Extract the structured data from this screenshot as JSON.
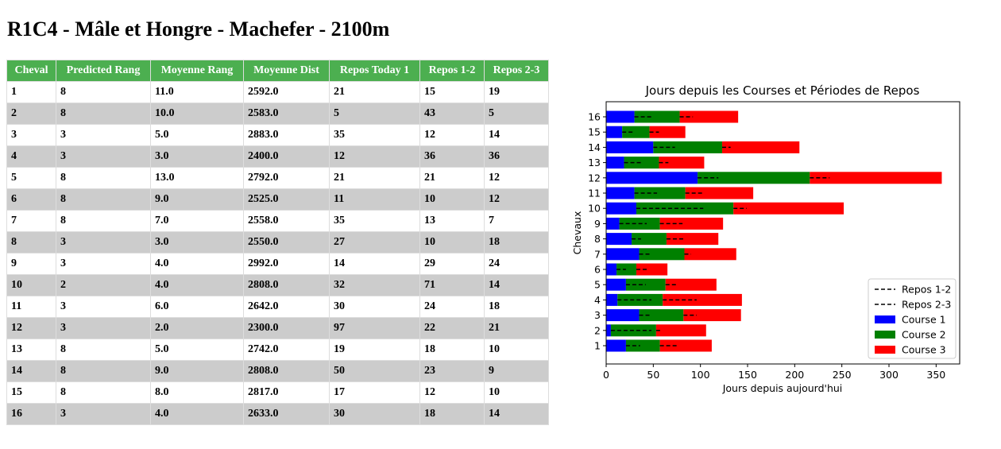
{
  "page": {
    "title": "R1C4 - Mâle et Hongre - Machefer - 2100m"
  },
  "table": {
    "headers": [
      "Cheval",
      "Predicted Rang",
      "Moyenne Rang",
      "Moyenne Dist",
      "Repos Today 1",
      "Repos 1-2",
      "Repos 2-3"
    ],
    "rows": [
      [
        "1",
        "8",
        "11.0",
        "2592.0",
        "21",
        "15",
        "19"
      ],
      [
        "2",
        "8",
        "10.0",
        "2583.0",
        "5",
        "43",
        "5"
      ],
      [
        "3",
        "3",
        "5.0",
        "2883.0",
        "35",
        "12",
        "14"
      ],
      [
        "4",
        "3",
        "3.0",
        "2400.0",
        "12",
        "36",
        "36"
      ],
      [
        "5",
        "8",
        "13.0",
        "2792.0",
        "21",
        "21",
        "12"
      ],
      [
        "6",
        "8",
        "9.0",
        "2525.0",
        "11",
        "10",
        "12"
      ],
      [
        "7",
        "8",
        "7.0",
        "2558.0",
        "35",
        "13",
        "7"
      ],
      [
        "8",
        "3",
        "3.0",
        "2550.0",
        "27",
        "10",
        "18"
      ],
      [
        "9",
        "3",
        "4.0",
        "2992.0",
        "14",
        "29",
        "24"
      ],
      [
        "10",
        "2",
        "4.0",
        "2808.0",
        "32",
        "71",
        "14"
      ],
      [
        "11",
        "3",
        "6.0",
        "2642.0",
        "30",
        "24",
        "18"
      ],
      [
        "12",
        "3",
        "2.0",
        "2300.0",
        "97",
        "22",
        "21"
      ],
      [
        "13",
        "8",
        "5.0",
        "2742.0",
        "19",
        "18",
        "10"
      ],
      [
        "14",
        "8",
        "9.0",
        "2808.0",
        "50",
        "23",
        "9"
      ],
      [
        "15",
        "8",
        "8.0",
        "2817.0",
        "17",
        "12",
        "10"
      ],
      [
        "16",
        "3",
        "4.0",
        "2633.0",
        "30",
        "18",
        "14"
      ]
    ]
  },
  "chart_data": {
    "type": "bar",
    "orientation": "horizontal",
    "stacked": true,
    "title": "Jours depuis les Courses et Périodes de Repos",
    "xlabel": "Jours depuis aujourd'hui",
    "ylabel": "Chevaux",
    "categories": [
      "1",
      "2",
      "3",
      "4",
      "5",
      "6",
      "7",
      "8",
      "9",
      "10",
      "11",
      "12",
      "13",
      "14",
      "15",
      "16"
    ],
    "xlim": [
      0,
      375
    ],
    "xticks": [
      0,
      50,
      100,
      150,
      200,
      250,
      300,
      350
    ],
    "series": [
      {
        "name": "Course 1",
        "color": "#0000ff",
        "values": [
          21,
          5,
          35,
          12,
          21,
          11,
          35,
          27,
          14,
          32,
          30,
          97,
          19,
          50,
          17,
          30
        ]
      },
      {
        "name": "Course 2",
        "color": "#008000",
        "values": [
          36,
          48,
          47,
          48,
          42,
          21,
          48,
          37,
          43,
          103,
          54,
          119,
          37,
          73,
          29,
          48
        ]
      },
      {
        "name": "Course 3",
        "color": "#ff0000",
        "values": [
          55,
          53,
          61,
          84,
          54,
          33,
          55,
          55,
          67,
          117,
          72,
          140,
          48,
          82,
          38,
          62
        ]
      }
    ],
    "lines": [
      {
        "name": "Repos 1-2",
        "style": "dashed",
        "start": [
          21,
          5,
          35,
          12,
          21,
          11,
          35,
          27,
          14,
          32,
          30,
          97,
          19,
          50,
          17,
          30
        ],
        "length": [
          15,
          43,
          12,
          36,
          21,
          10,
          13,
          10,
          29,
          71,
          24,
          22,
          18,
          23,
          12,
          18
        ]
      },
      {
        "name": "Repos 2-3",
        "style": "dashed",
        "start": [
          57,
          53,
          82,
          60,
          63,
          32,
          83,
          64,
          57,
          135,
          84,
          216,
          56,
          123,
          46,
          78
        ],
        "length": [
          19,
          5,
          14,
          36,
          12,
          12,
          7,
          18,
          24,
          14,
          18,
          21,
          10,
          9,
          10,
          14
        ]
      }
    ],
    "legend": {
      "position": "lower-right",
      "labels": [
        "Repos 1-2",
        "Repos 2-3",
        "Course 1",
        "Course 2",
        "Course 3"
      ]
    },
    "grid": false
  }
}
